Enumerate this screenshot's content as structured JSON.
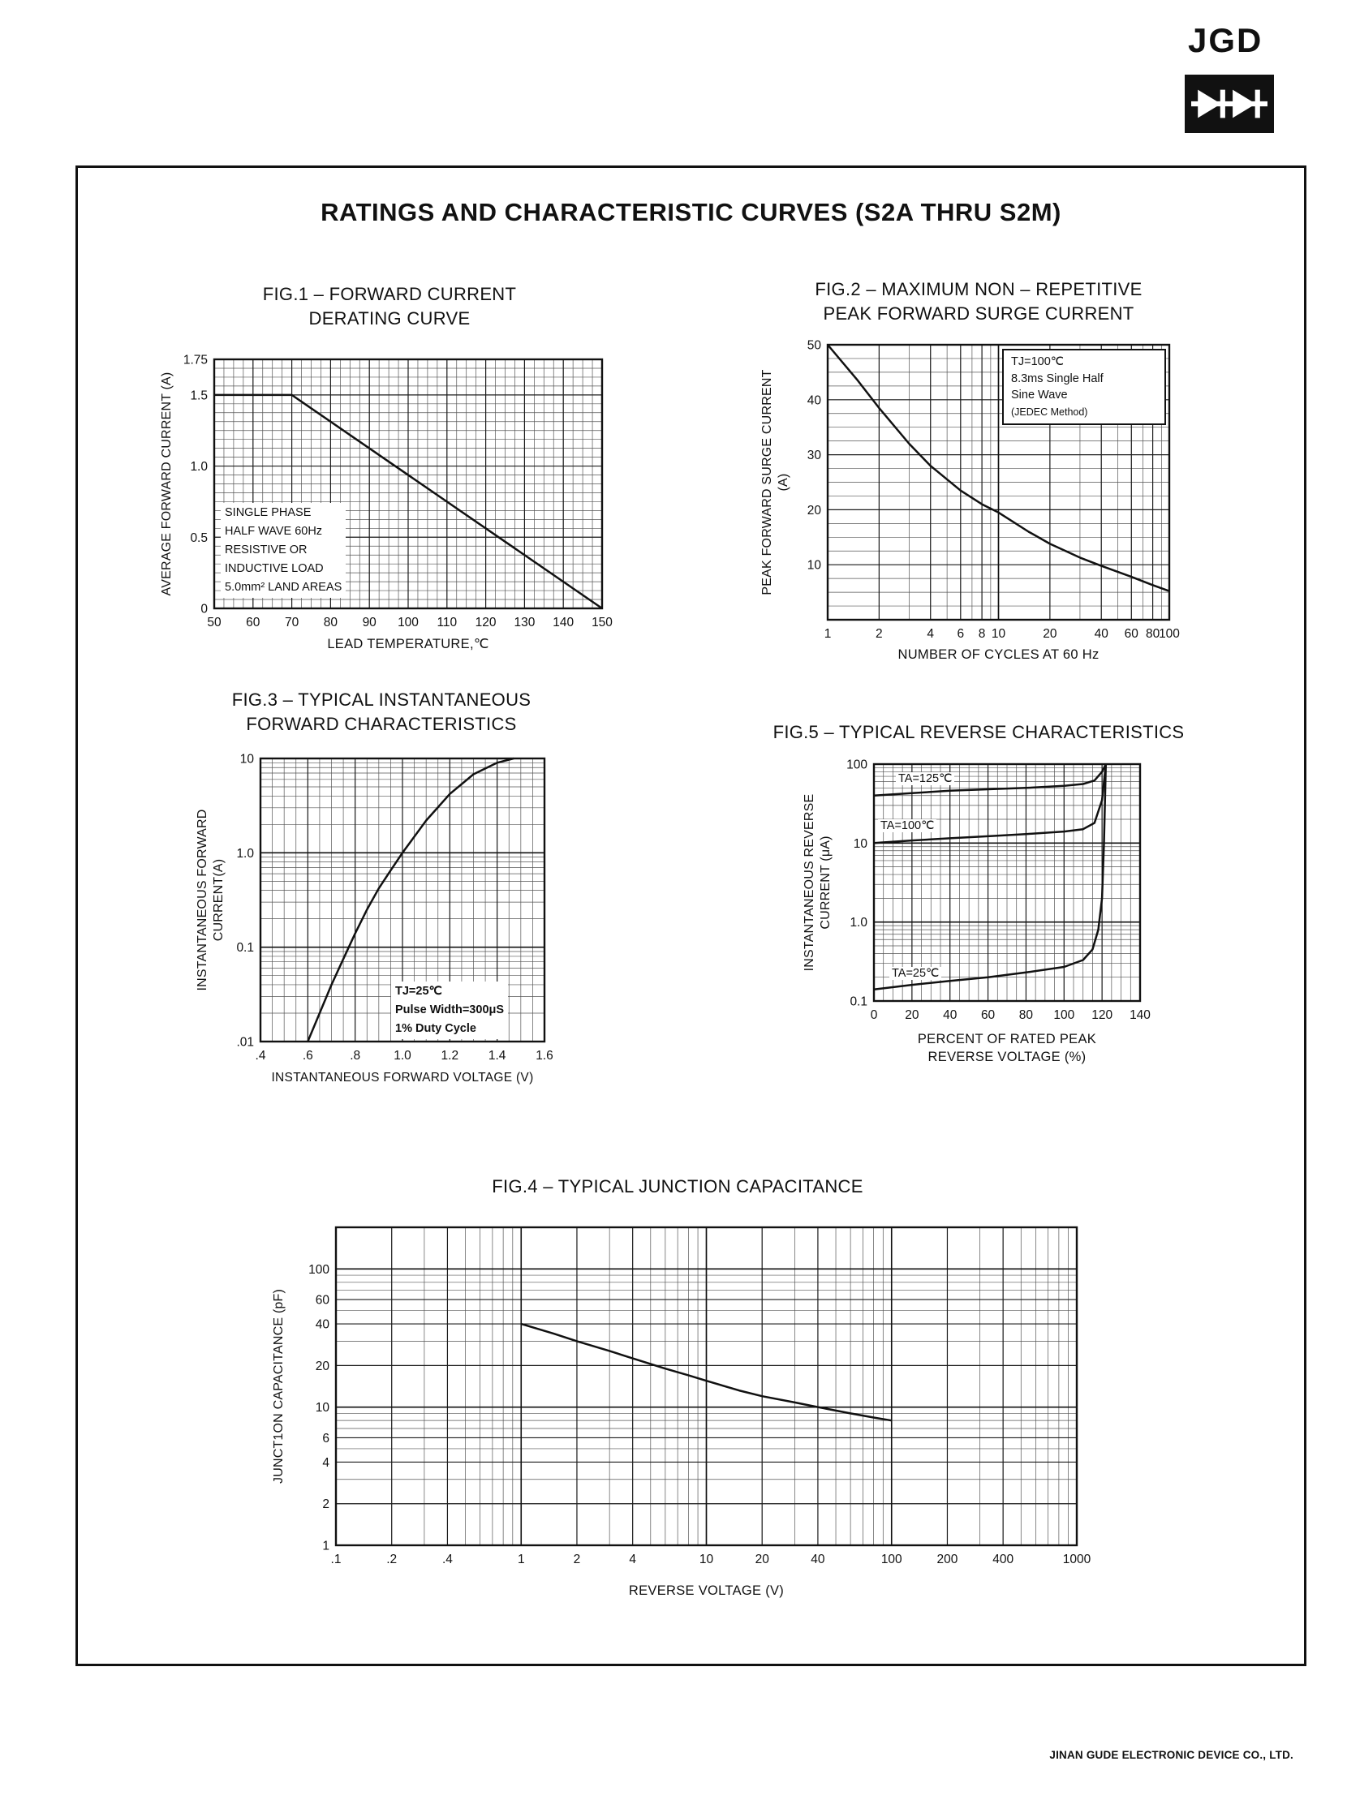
{
  "page": {
    "logo_text": "JGD",
    "main_title": "RATINGS AND CHARACTERISTIC CURVES (S2A THRU S2M)",
    "footer": "JINAN GUDE ELECTRONIC DEVICE CO., LTD."
  },
  "chart_data": [
    {
      "id": "fig1",
      "type": "line",
      "title": "FIG.1 – FORWARD CURRENT DERATING CURVE",
      "title_lines": [
        "FIG.1 – FORWARD CURRENT",
        "DERATING CURVE"
      ],
      "xlabel": "LEAD TEMPERATURE,℃",
      "ylabel": "AVERAGE FORWARD CURRENT (A)",
      "xscale": "linear",
      "yscale": "linear",
      "xlim": [
        50,
        150
      ],
      "ylim": [
        0,
        1.75
      ],
      "xminor": 2.5,
      "yminor": 0.0625,
      "xticks": [
        50,
        60,
        70,
        80,
        90,
        100,
        110,
        120,
        130,
        140,
        150
      ],
      "xtick_labels": [
        "50",
        "60",
        "70",
        "80",
        "90",
        "100",
        "110",
        "120",
        "130",
        "140",
        "150"
      ],
      "yticks": [
        0,
        0.5,
        1.0,
        1.5,
        1.75
      ],
      "ytick_labels": [
        "0",
        "0.5",
        "1.0",
        "1.5",
        "1.75"
      ],
      "series": [
        {
          "name": "forward-current-derating",
          "x": [
            50,
            70,
            150
          ],
          "y": [
            1.5,
            1.5,
            0
          ]
        }
      ],
      "annotation_lines": [
        "SINGLE PHASE",
        "HALF WAVE 60Hz",
        "RESISTIVE OR",
        "INDUCTIVE LOAD",
        "5.0mm² LAND AREAS"
      ]
    },
    {
      "id": "fig2",
      "type": "line",
      "title": "FIG.2 – MAXIMUM NON – REPETITIVE PEAK FORWARD SURGE CURRENT",
      "title_lines": [
        "FIG.2 – MAXIMUM NON – REPETITIVE",
        "PEAK FORWARD SURGE CURRENT"
      ],
      "xlabel": "NUMBER OF CYCLES AT 60 Hz",
      "ylabel": "PEAK FORWARD SURGE CURRENT (A)",
      "ylabel_lines": [
        "PEAK FORWARD SURGE CURRENT",
        "(A)"
      ],
      "xscale": "log",
      "yscale": "linear",
      "xlim": [
        1,
        100
      ],
      "ylim": [
        0,
        50
      ],
      "yminor": 2.5,
      "xticks": [
        1,
        2,
        4,
        6,
        8,
        10,
        20,
        40,
        60,
        80,
        100
      ],
      "xtick_labels": [
        "1",
        "2",
        "4",
        "6",
        "8",
        "10",
        "20",
        "40",
        "60",
        "80",
        "100"
      ],
      "yticks": [
        10,
        20,
        30,
        40,
        50
      ],
      "ytick_labels": [
        "10",
        "20",
        "30",
        "40",
        "50"
      ],
      "series": [
        {
          "name": "surge-current",
          "x": [
            1,
            1.5,
            2,
            3,
            4,
            6,
            8,
            10,
            15,
            20,
            30,
            40,
            60,
            80,
            100
          ],
          "y": [
            50,
            43.5,
            38.5,
            32,
            28,
            23.5,
            21,
            19.5,
            16,
            13.8,
            11.3,
            9.8,
            7.8,
            6.3,
            5.2
          ]
        }
      ],
      "annotation_lines": [
        "TJ=100℃",
        "8.3ms Single Half",
        "Sine Wave",
        "(JEDEC Method)"
      ]
    },
    {
      "id": "fig3",
      "type": "line",
      "title": "FIG.3 – TYPICAL INSTANTANEOUS FORWARD CHARACTERISTICS",
      "title_lines": [
        "FIG.3 – TYPICAL INSTANTANEOUS",
        "FORWARD CHARACTERISTICS"
      ],
      "xlabel": "INSTANTANEOUS FORWARD VOLTAGE (V)",
      "ylabel": "INSTANTANEOUS FORWARD CURRENT(A)",
      "ylabel_lines": [
        "INSTANTANEOUS FORWARD",
        "CURRENT(A)"
      ],
      "xscale": "linear",
      "yscale": "log",
      "xlim": [
        0.4,
        1.6
      ],
      "ylim": [
        0.01,
        10
      ],
      "xminor": 0.05,
      "xticks": [
        0.4,
        0.6,
        0.8,
        1.0,
        1.2,
        1.4,
        1.6
      ],
      "xtick_labels": [
        ".4",
        ".6",
        ".8",
        "1.0",
        "1.2",
        "1.4",
        "1.6"
      ],
      "yticks": [
        0.01,
        0.1,
        1,
        10
      ],
      "ytick_labels": [
        ".01",
        "0.1",
        "1.0",
        "10"
      ],
      "series": [
        {
          "name": "forward-voltage-current",
          "x": [
            0.6,
            0.65,
            0.7,
            0.75,
            0.8,
            0.85,
            0.9,
            0.95,
            1.0,
            1.1,
            1.2,
            1.3,
            1.4,
            1.47
          ],
          "y": [
            0.01,
            0.02,
            0.04,
            0.075,
            0.14,
            0.25,
            0.42,
            0.65,
            1.0,
            2.2,
            4.2,
            6.8,
            9.0,
            10
          ]
        }
      ],
      "annotation_lines": [
        "TJ=25℃",
        "Pulse Width=300μS",
        "1% Duty Cycle"
      ]
    },
    {
      "id": "fig5",
      "type": "line",
      "title": "FIG.5 – TYPICAL REVERSE CHARACTERISTICS",
      "title_lines": [
        "FIG.5 – TYPICAL REVERSE CHARACTERISTICS"
      ],
      "xlabel": "PERCENT OF RATED PEAK REVERSE VOLTAGE (%)",
      "xlabel_lines": [
        "PERCENT OF RATED PEAK",
        "REVERSE VOLTAGE (%)"
      ],
      "ylabel": "INSTANTANEOUS REVERSE CURRENT (μA)",
      "ylabel_lines": [
        "INSTANTANEOUS REVERSE",
        "CURRENT (μA)"
      ],
      "xscale": "linear",
      "yscale": "log",
      "xlim": [
        0,
        140
      ],
      "ylim": [
        0.1,
        100
      ],
      "xminor": 5,
      "xticks": [
        0,
        20,
        40,
        60,
        80,
        100,
        120,
        140
      ],
      "xtick_labels": [
        "0",
        "20",
        "40",
        "60",
        "80",
        "100",
        "120",
        "140"
      ],
      "yticks": [
        0.1,
        1,
        10,
        100
      ],
      "ytick_labels": [
        "0.1",
        "1.0",
        "10",
        "100"
      ],
      "series": [
        {
          "name": "reverse-current-125C",
          "label": "TA=125℃",
          "x": [
            0,
            20,
            40,
            60,
            80,
            100,
            110,
            116,
            120,
            122
          ],
          "y": [
            40,
            43,
            46,
            48,
            50,
            53,
            56,
            62,
            80,
            100
          ]
        },
        {
          "name": "reverse-current-100C",
          "label": "TA=100℃",
          "x": [
            0,
            20,
            40,
            60,
            80,
            100,
            110,
            116,
            120,
            122
          ],
          "y": [
            10,
            10.8,
            11.5,
            12.2,
            13,
            14,
            15,
            18,
            35,
            100
          ]
        },
        {
          "name": "reverse-current-25C",
          "label": "TA=25℃",
          "x": [
            0,
            20,
            40,
            60,
            80,
            100,
            110,
            115,
            118,
            120,
            121,
            122
          ],
          "y": [
            0.14,
            0.16,
            0.18,
            0.2,
            0.23,
            0.27,
            0.33,
            0.45,
            0.8,
            2,
            10,
            100
          ]
        }
      ]
    },
    {
      "id": "fig4",
      "type": "line",
      "title": "FIG.4 – TYPICAL JUNCTION CAPACITANCE",
      "title_lines": [
        "FIG.4 – TYPICAL JUNCTION CAPACITANCE"
      ],
      "xlabel": "REVERSE VOLTAGE (V)",
      "ylabel": "JUNCT1ON CAPACITANCE (pF)",
      "xscale": "log",
      "yscale": "log",
      "xlim": [
        0.1,
        1000
      ],
      "ylim": [
        1,
        200
      ],
      "xticks": [
        0.1,
        0.2,
        0.4,
        1,
        2,
        4,
        10,
        20,
        40,
        100,
        200,
        400,
        1000
      ],
      "xtick_labels": [
        ".1",
        ".2",
        ".4",
        "1",
        "2",
        "4",
        "10",
        "20",
        "40",
        "100",
        "200",
        "400",
        "1000"
      ],
      "yticks": [
        1,
        2,
        4,
        6,
        10,
        20,
        40,
        60,
        100
      ],
      "ytick_labels": [
        "1",
        "2",
        "4",
        "6",
        "10",
        "20",
        "40",
        "60",
        "100"
      ],
      "series": [
        {
          "name": "junction-capacitance",
          "x": [
            1,
            1.5,
            2,
            3,
            4,
            6,
            8,
            10,
            15,
            20,
            30,
            40,
            60,
            80,
            100
          ],
          "y": [
            40,
            34,
            30,
            25.5,
            22.5,
            19,
            17,
            15.5,
            13.2,
            12,
            10.8,
            10,
            9,
            8.4,
            8
          ]
        }
      ]
    }
  ]
}
